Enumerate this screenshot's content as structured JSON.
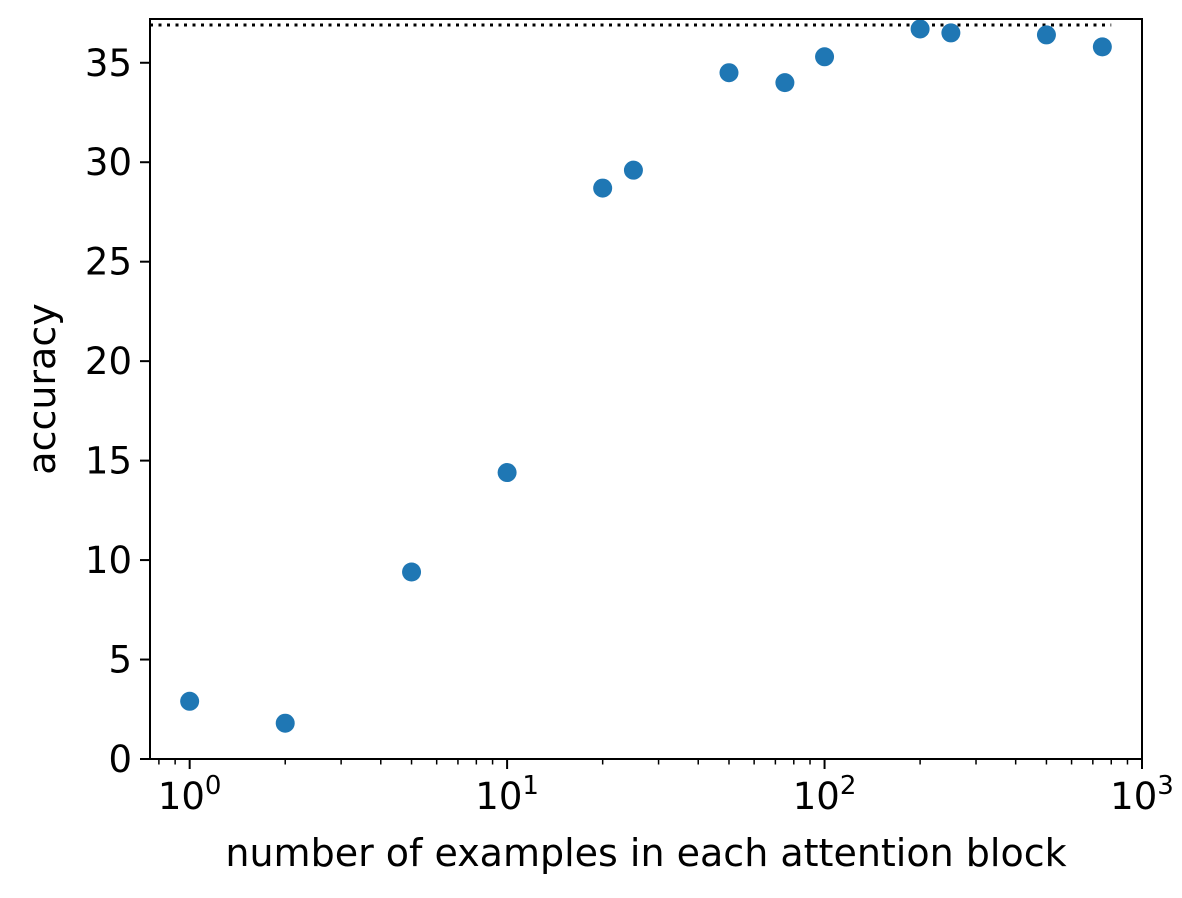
{
  "chart_data": {
    "type": "scatter",
    "title": "",
    "xlabel": "number of examples in each attention block",
    "ylabel": "accuracy",
    "xscale": "log",
    "xlim": [
      0.75,
      1000
    ],
    "ylim": [
      0,
      37.2
    ],
    "grid": false,
    "legend": "none",
    "marker_color": "#1f77b4",
    "x_ticks": [
      {
        "value": 1,
        "base": "10",
        "exp": "0"
      },
      {
        "value": 10,
        "base": "10",
        "exp": "1"
      },
      {
        "value": 100,
        "base": "10",
        "exp": "2"
      },
      {
        "value": 1000,
        "base": "10",
        "exp": "3"
      }
    ],
    "y_ticks": [
      0,
      5,
      10,
      15,
      20,
      25,
      30,
      35
    ],
    "reference_line": {
      "y": 36.9,
      "style": "dotted",
      "x_range": [
        0.75,
        800
      ]
    },
    "points": [
      {
        "x": 1,
        "y": 2.9
      },
      {
        "x": 2,
        "y": 1.8
      },
      {
        "x": 5,
        "y": 9.4
      },
      {
        "x": 10,
        "y": 14.4
      },
      {
        "x": 20,
        "y": 28.7
      },
      {
        "x": 25,
        "y": 29.6
      },
      {
        "x": 50,
        "y": 34.5
      },
      {
        "x": 75,
        "y": 34.0
      },
      {
        "x": 100,
        "y": 35.3
      },
      {
        "x": 200,
        "y": 36.7
      },
      {
        "x": 250,
        "y": 36.5
      },
      {
        "x": 500,
        "y": 36.4
      },
      {
        "x": 750,
        "y": 35.8
      }
    ]
  }
}
